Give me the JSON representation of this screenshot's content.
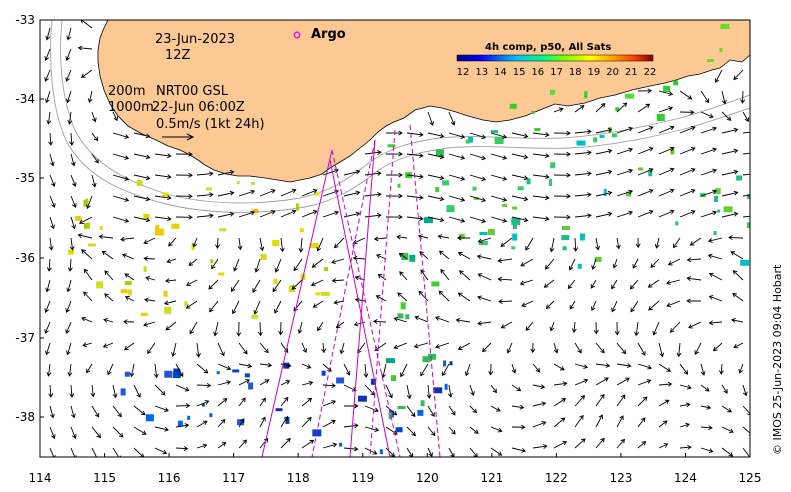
{
  "map": {
    "date": "23-Jun-2023",
    "hour": "12Z",
    "argo_label": "Argo",
    "legend_title": "4h comp, p50, All Sats",
    "colorbar_ticks": [
      "12",
      "13",
      "14",
      "15",
      "16",
      "17",
      "18",
      "19",
      "20",
      "21",
      "22"
    ],
    "iso200": "200m",
    "iso1000": "1000m",
    "product": "NRT00 GSL",
    "product_time": "22-Jun 06:00Z",
    "speed_scale": "0.5m/s (1kt 24h)",
    "credit": "© IMOS 25-Jun-2023 09:04 Hobart",
    "lat_labels": [
      "-33",
      "-34",
      "-35",
      "-36",
      "-37",
      "-38"
    ],
    "lon_labels": [
      "114",
      "115",
      "116",
      "117",
      "118",
      "119",
      "120",
      "121",
      "122",
      "123",
      "124",
      "125"
    ],
    "colors": {
      "land": "#fcc893",
      "track": "#cc00cc",
      "argo": "#ff00ff",
      "isobath": "#a0a0a0"
    }
  }
}
